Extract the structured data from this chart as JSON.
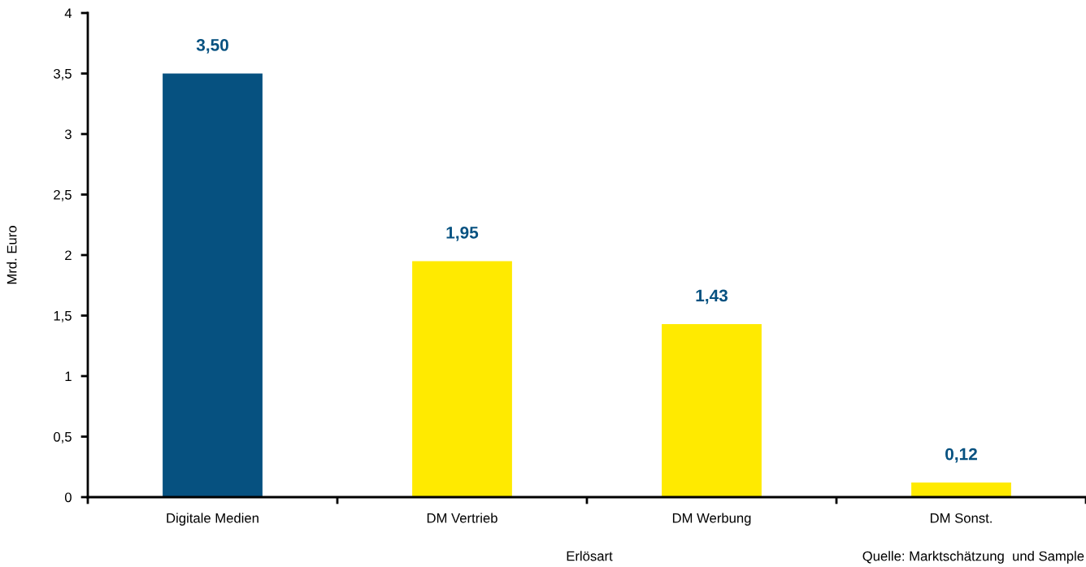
{
  "chart_data": {
    "type": "bar",
    "xlabel": "Erlösart",
    "ylabel": "Mrd. Euro",
    "annotations": [
      "Quelle: Marktschätzung  und Sample"
    ],
    "categories": [
      "Digitale Medien",
      "DM Vertrieb",
      "DM Werbung",
      "DM Sonst."
    ],
    "values": [
      3.5,
      1.95,
      1.43,
      0.12
    ],
    "colors": [
      "#065180",
      "#ffea00",
      "#ffea00",
      "#ffea00"
    ],
    "value_labels": [
      "3,50",
      "1,95",
      "1,43",
      "0,12"
    ],
    "ylim": [
      0,
      4
    ],
    "yticks": [
      0,
      {
        "value": 0.5,
        "label": "0,5"
      },
      1,
      {
        "value": 1.5,
        "label": "1,5"
      },
      2,
      {
        "value": 2.5,
        "label": "2,5"
      },
      3,
      {
        "value": 3.5,
        "label": "3,5"
      },
      4
    ],
    "grid": false,
    "legend": false
  }
}
